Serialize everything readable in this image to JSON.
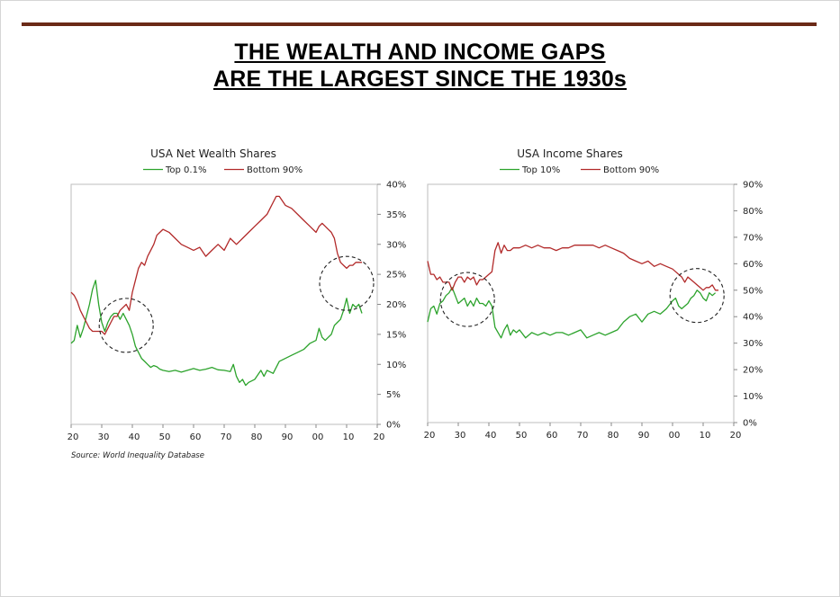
{
  "page": {
    "title_line1": "THE WEALTH AND INCOME GAPS",
    "title_line2": "ARE THE LARGEST SINCE THE 1930s",
    "source": "Source: World Inequality Database"
  },
  "colors": {
    "top_series": "#2ca32c",
    "bottom_series": "#b22a2a",
    "accent_bar": "#6b2a17"
  },
  "chart_data": [
    {
      "type": "line",
      "title": "USA Net Wealth Shares",
      "x_tick_labels": [
        "20",
        "30",
        "40",
        "50",
        "60",
        "70",
        "80",
        "90",
        "00",
        "10",
        "20"
      ],
      "y_tick_labels": [
        "0%",
        "5%",
        "10%",
        "15%",
        "20%",
        "25%",
        "30%",
        "35%",
        "40%"
      ],
      "xlim": [
        1920,
        2020
      ],
      "ylim": [
        0,
        40
      ],
      "legend_position": "top",
      "grid": false,
      "series": [
        {
          "name": "Top 0.1%",
          "x": [
            1920,
            1921,
            1922,
            1923,
            1924,
            1925,
            1926,
            1927,
            1928,
            1929,
            1930,
            1931,
            1932,
            1933,
            1934,
            1935,
            1936,
            1937,
            1938,
            1939,
            1940,
            1941,
            1942,
            1943,
            1944,
            1945,
            1946,
            1947,
            1948,
            1949,
            1950,
            1952,
            1954,
            1956,
            1958,
            1960,
            1962,
            1964,
            1966,
            1968,
            1970,
            1972,
            1973,
            1974,
            1975,
            1976,
            1977,
            1978,
            1980,
            1982,
            1983,
            1984,
            1986,
            1988,
            1990,
            1992,
            1994,
            1996,
            1998,
            2000,
            2001,
            2002,
            2003,
            2004,
            2005,
            2006,
            2007,
            2008,
            2009,
            2010,
            2011,
            2012,
            2013,
            2014,
            2015
          ],
          "y": [
            13.5,
            14,
            16.5,
            14.5,
            16,
            18,
            20,
            22.5,
            24,
            20,
            17,
            15.5,
            17,
            18,
            18.5,
            18.5,
            17.5,
            18.5,
            17.5,
            16.5,
            15,
            13,
            12,
            11,
            10.5,
            10,
            9.5,
            9.8,
            9.6,
            9.2,
            9,
            8.8,
            9,
            8.7,
            9,
            9.3,
            9,
            9.2,
            9.5,
            9.1,
            9,
            8.8,
            10,
            8,
            7,
            7.5,
            6.5,
            7,
            7.5,
            9,
            8,
            9,
            8.5,
            10.5,
            11,
            11.5,
            12,
            12.5,
            13.5,
            14,
            16,
            14.5,
            14,
            14.5,
            15,
            16.5,
            17,
            17.5,
            19,
            21,
            18.5,
            20,
            19.5,
            20,
            18.5
          ]
        },
        {
          "name": "Bottom 90%",
          "x": [
            1920,
            1921,
            1922,
            1923,
            1924,
            1925,
            1926,
            1927,
            1928,
            1929,
            1930,
            1931,
            1932,
            1933,
            1934,
            1935,
            1936,
            1937,
            1938,
            1939,
            1940,
            1941,
            1942,
            1943,
            1944,
            1945,
            1946,
            1947,
            1948,
            1949,
            1950,
            1952,
            1954,
            1956,
            1958,
            1960,
            1962,
            1964,
            1966,
            1968,
            1970,
            1972,
            1974,
            1976,
            1978,
            1980,
            1982,
            1984,
            1985,
            1986,
            1987,
            1988,
            1990,
            1992,
            1994,
            1996,
            1998,
            2000,
            2001,
            2002,
            2003,
            2004,
            2005,
            2006,
            2007,
            2008,
            2009,
            2010,
            2011,
            2012,
            2013,
            2014,
            2015
          ],
          "y": [
            22,
            21.5,
            20.5,
            19,
            18,
            17,
            16,
            15.5,
            15.5,
            15.5,
            15.5,
            15,
            16,
            17,
            18,
            18,
            19,
            19.5,
            20,
            19,
            22,
            24,
            26,
            27,
            26.5,
            28,
            29,
            30,
            31.5,
            32,
            32.5,
            32,
            31,
            30,
            29.5,
            29,
            29.5,
            28,
            29,
            30,
            29,
            31,
            30,
            31,
            32,
            33,
            34,
            35,
            36,
            37,
            38,
            38,
            36.5,
            36,
            35,
            34,
            33,
            32,
            33,
            33.5,
            33,
            32.5,
            32,
            31,
            28.5,
            27,
            26.5,
            26,
            26.5,
            26.5,
            27,
            27,
            27
          ]
        }
      ],
      "highlight_circles": [
        {
          "x_center": 1938,
          "y_center": 16.5,
          "label": ""
        },
        {
          "x_center": 2010,
          "y_center": 23.5,
          "label": ""
        }
      ]
    },
    {
      "type": "line",
      "title": "USA Income Shares",
      "x_tick_labels": [
        "20",
        "30",
        "40",
        "50",
        "60",
        "70",
        "80",
        "90",
        "00",
        "10",
        "20"
      ],
      "y_tick_labels": [
        "0%",
        "10%",
        "20%",
        "30%",
        "40%",
        "50%",
        "60%",
        "70%",
        "80%",
        "90%"
      ],
      "xlim": [
        1920,
        2020
      ],
      "ylim": [
        0,
        90
      ],
      "legend_position": "top",
      "grid": false,
      "series": [
        {
          "name": "Top 10%",
          "x": [
            1920,
            1921,
            1922,
            1923,
            1924,
            1925,
            1926,
            1927,
            1928,
            1929,
            1930,
            1931,
            1932,
            1933,
            1934,
            1935,
            1936,
            1937,
            1938,
            1939,
            1940,
            1941,
            1942,
            1943,
            1944,
            1945,
            1946,
            1947,
            1948,
            1949,
            1950,
            1952,
            1954,
            1956,
            1958,
            1960,
            1962,
            1964,
            1966,
            1968,
            1970,
            1972,
            1974,
            1976,
            1978,
            1980,
            1982,
            1984,
            1986,
            1988,
            1990,
            1992,
            1994,
            1996,
            1998,
            2000,
            2001,
            2002,
            2003,
            2004,
            2005,
            2006,
            2007,
            2008,
            2009,
            2010,
            2011,
            2012,
            2013,
            2014
          ],
          "y": [
            38,
            43,
            44,
            41,
            45,
            46,
            48,
            49,
            51,
            48,
            45,
            46,
            47,
            44,
            46,
            44,
            47,
            45,
            45,
            44,
            46,
            44,
            36,
            34,
            32,
            35,
            37,
            33,
            35,
            34,
            35,
            32,
            34,
            33,
            34,
            33,
            34,
            34,
            33,
            34,
            35,
            32,
            33,
            34,
            33,
            34,
            35,
            38,
            40,
            41,
            38,
            41,
            42,
            41,
            43,
            46,
            47,
            44,
            43,
            44,
            45,
            47,
            48,
            50,
            49,
            47,
            46,
            49,
            48,
            49
          ]
        },
        {
          "name": "Bottom 90%",
          "x": [
            1920,
            1921,
            1922,
            1923,
            1924,
            1925,
            1926,
            1927,
            1928,
            1929,
            1930,
            1931,
            1932,
            1933,
            1934,
            1935,
            1936,
            1937,
            1938,
            1939,
            1940,
            1941,
            1942,
            1943,
            1944,
            1945,
            1946,
            1947,
            1948,
            1950,
            1952,
            1954,
            1956,
            1958,
            1960,
            1962,
            1964,
            1966,
            1968,
            1970,
            1972,
            1974,
            1976,
            1978,
            1980,
            1982,
            1984,
            1986,
            1988,
            1990,
            1992,
            1994,
            1996,
            1998,
            2000,
            2001,
            2002,
            2003,
            2004,
            2005,
            2006,
            2007,
            2008,
            2009,
            2010,
            2011,
            2012,
            2013,
            2014,
            2015
          ],
          "y": [
            61,
            56,
            56,
            54,
            55,
            53,
            53,
            53,
            50,
            53,
            55,
            55,
            53,
            55,
            54,
            55,
            52,
            54,
            54,
            55,
            56,
            57,
            65,
            68,
            64,
            67,
            65,
            65,
            66,
            66,
            67,
            66,
            67,
            66,
            66,
            65,
            66,
            66,
            67,
            67,
            67,
            67,
            66,
            67,
            66,
            65,
            64,
            62,
            61,
            60,
            61,
            59,
            60,
            59,
            58,
            57,
            56,
            55,
            53,
            55,
            54,
            53,
            52,
            51,
            50,
            51,
            51,
            52,
            50,
            50
          ]
        }
      ],
      "highlight_circles": [
        {
          "x_center": 1933,
          "y_center": 46.5,
          "label": ""
        },
        {
          "x_center": 2008,
          "y_center": 48,
          "label": ""
        }
      ]
    }
  ]
}
